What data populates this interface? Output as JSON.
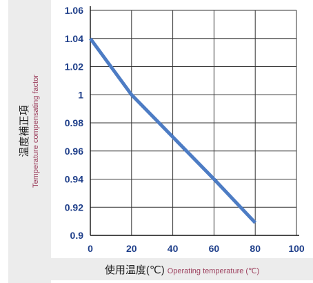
{
  "chart_data": {
    "type": "line",
    "ylabel_jp": "温度補正項",
    "ylabel_en": "Temperature compensating factor",
    "xlabel_jp": "使用温度(℃)",
    "xlabel_en": "Operating temperature (℃)",
    "xlim": [
      0,
      100
    ],
    "ylim": [
      0.9,
      1.06
    ],
    "xticks": [
      "0",
      "20",
      "40",
      "60",
      "80",
      "100"
    ],
    "yticks": [
      "0.9",
      "0.92",
      "0.94",
      "0.96",
      "0.98",
      "1",
      "1.02",
      "1.04",
      "1.06"
    ],
    "grid": true,
    "series": [
      {
        "color": "#4d7cc4",
        "points": [
          [
            0,
            1.04
          ],
          [
            20,
            1.0
          ],
          [
            40,
            0.97
          ],
          [
            60,
            0.94
          ],
          [
            80,
            0.909
          ]
        ]
      }
    ]
  }
}
